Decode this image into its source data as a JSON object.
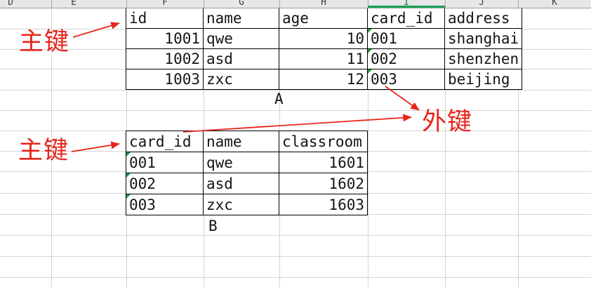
{
  "colors": {
    "annotation_red": "#e6251a",
    "indicator_green": "#1f9b3f",
    "selection_green": "#18a158"
  },
  "column_headers": [
    "D",
    "E",
    "F",
    "G",
    "H",
    "I",
    "J",
    "K"
  ],
  "selected_column": "I",
  "table_a": {
    "label": "A",
    "headers": [
      "id",
      "name",
      "age",
      "card_id",
      "address"
    ],
    "rows": [
      [
        "1001",
        "qwe",
        "10",
        "001",
        "shanghai"
      ],
      [
        "1002",
        "asd",
        "11",
        "002",
        "shenzhen"
      ],
      [
        "1003",
        "zxc",
        "12",
        "003",
        "beijing"
      ]
    ]
  },
  "table_b": {
    "label": "B",
    "headers": [
      "card_id",
      "name",
      "classroom"
    ],
    "rows": [
      [
        "001",
        "qwe",
        "1601"
      ],
      [
        "002",
        "asd",
        "1602"
      ],
      [
        "003",
        "zxc",
        "1603"
      ]
    ]
  },
  "annotations": {
    "primary_key_top": "主键",
    "primary_key_bottom": "主键",
    "foreign_key": "外键"
  }
}
